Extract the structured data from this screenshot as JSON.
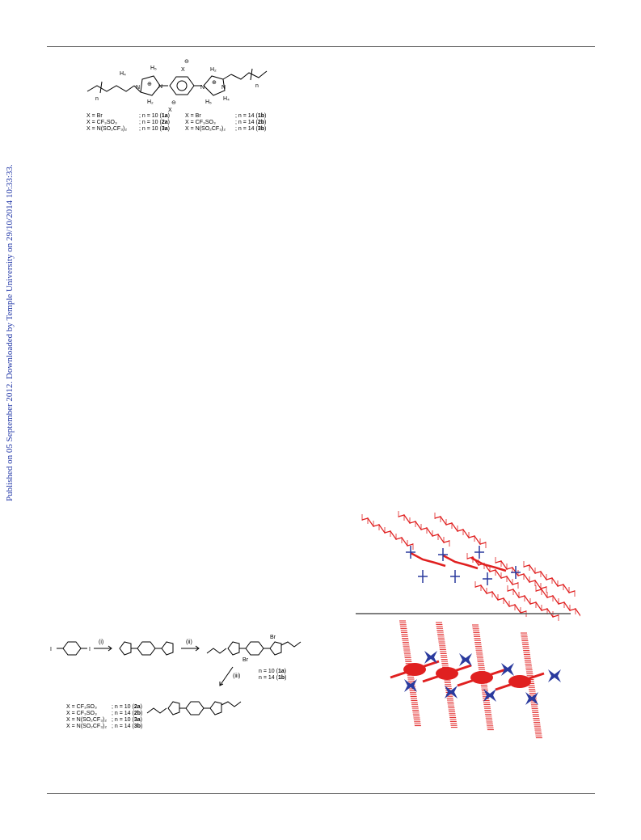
{
  "watermark": "Published on 05 September 2012. Downloaded by Temple University on 29/10/2014 10:33:33.",
  "chart1": {
    "atom_labels": {
      "H5": "H₅",
      "H4": "H₄",
      "H2": "H₂",
      "N": "N",
      "n": "n",
      "X": "X",
      "charge": "⊕",
      "anion": "⊖"
    },
    "legend_left": [
      {
        "anion": "X = Br",
        "count": "; n = 10",
        "id": "1a"
      },
      {
        "anion": "X = CF₃SO₃",
        "count": "; n = 10",
        "id": "2a"
      },
      {
        "anion": "X = N(SO₂CF₃)₂",
        "count": "; n = 10",
        "id": "3a"
      }
    ],
    "legend_right": [
      {
        "anion": "X = Br",
        "count": "; n = 14",
        "id": "1b"
      },
      {
        "anion": "X = CF₃SO₃",
        "count": "; n = 14",
        "id": "2b"
      },
      {
        "anion": "X = N(SO₂CF₃)₂",
        "count": "; n = 14",
        "id": "3b"
      }
    ]
  },
  "scheme1": {
    "reagent_i": "I",
    "step_labels": [
      "(i)",
      "(ii)",
      "(iii)"
    ],
    "bromide": "Br",
    "n_values": [
      {
        "count": "n = 10",
        "id": "1a"
      },
      {
        "count": "n = 14",
        "id": "1b"
      }
    ],
    "products": [
      {
        "anion": "X = CF₃SO₃",
        "count": "; n = 10",
        "id": "2a"
      },
      {
        "anion": "X = CF₃SO₃",
        "count": "; n = 14",
        "id": "2b"
      },
      {
        "anion": "X = N(SO₂CF₃)₂",
        "count": "; n = 10",
        "id": "3a"
      },
      {
        "anion": "X = N(SO₂CF₃)₂",
        "count": "; n = 14",
        "id": "3b"
      }
    ]
  },
  "colors": {
    "cation": "#e02020",
    "anion": "#2a3a9e",
    "watermark": "#1f35a6",
    "rule": "#777777"
  }
}
